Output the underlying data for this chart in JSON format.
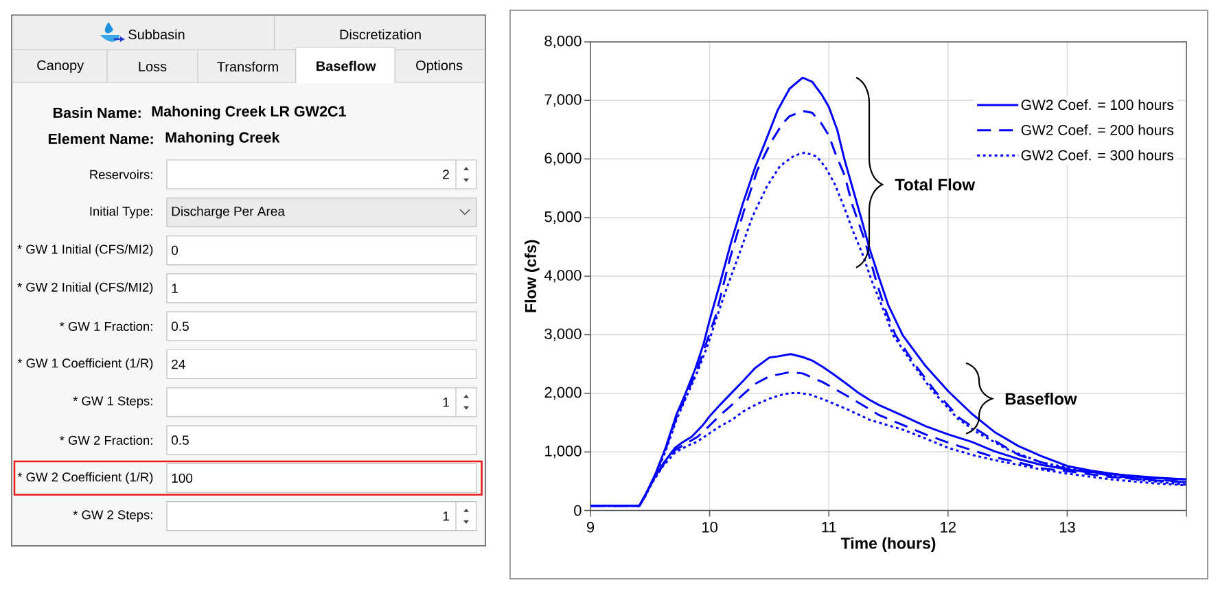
{
  "chart_data": [
    {
      "type": "other",
      "annotations": [
        "Subbasin",
        "Discretization",
        "Canopy",
        "Loss",
        "Transform",
        "Baseflow",
        "Options",
        "Basin Name:",
        "Mahoning Creek LR GW2C1",
        "Element Name:",
        "Mahoning Creek",
        "Reservoirs:",
        "2",
        "Initial Type:",
        "Discharge Per Area",
        "* GW 1 Initial (CFS/MI2)",
        "0",
        "* GW 2 Initial (CFS/MI2)",
        "1",
        "* GW 1 Fraction:",
        "0.5",
        "* GW 1 Coefficient (1/R)",
        "24",
        "* GW 1 Steps:",
        "1",
        "* GW 2 Fraction:",
        "0.5",
        "* GW 2 Coefficient (1/R)",
        "100",
        "* GW 2 Steps:",
        "1"
      ]
    },
    {
      "type": "line",
      "xlabel": "Time (hours)",
      "ylabel": "Flow (cfs)",
      "xlim": [
        9,
        14
      ],
      "xticks": [
        9,
        10,
        11,
        12,
        13,
        {
          "value": 14,
          "label": null
        }
      ],
      "ylim": [
        0,
        8000
      ],
      "yticks": [
        0,
        {
          "value": 1000,
          "label": "1,000"
        },
        {
          "value": 2000,
          "label": "2,000"
        },
        {
          "value": 3000,
          "label": "3,000"
        },
        {
          "value": 4000,
          "label": "4,000"
        },
        {
          "value": 5000,
          "label": "5,000"
        },
        {
          "value": 6000,
          "label": "6,000"
        },
        {
          "value": 7000,
          "label": "7,000"
        },
        {
          "value": 8000,
          "label": "8,000"
        }
      ],
      "grid": true,
      "legend": "top right",
      "series": [
        {
          "name": "GW2 Coef. = 100 hours",
          "color": "#0000ff",
          "line_style": "solid",
          "x": [
            9.0,
            9.41,
            9.46,
            9.55,
            9.63,
            9.72,
            9.79,
            9.88,
            9.95,
            10.0,
            10.09,
            10.18,
            10.28,
            10.38,
            10.48,
            10.57,
            10.67,
            10.78,
            10.86,
            10.94,
            11.0,
            11.07,
            11.13,
            11.2,
            11.27,
            11.34,
            11.42,
            11.5,
            11.62,
            11.81,
            12.0,
            12.2,
            12.39,
            12.59,
            12.78,
            13.0,
            13.2,
            13.37,
            13.55,
            13.75,
            14.0
          ],
          "values": [
            80,
            80,
            250,
            650,
            1070,
            1630,
            1960,
            2420,
            2850,
            3250,
            3900,
            4580,
            5250,
            5850,
            6360,
            6830,
            7200,
            7390,
            7320,
            7100,
            6890,
            6500,
            6000,
            5500,
            5000,
            4480,
            3980,
            3500,
            2990,
            2470,
            2040,
            1650,
            1340,
            1100,
            930,
            760,
            680,
            630,
            580,
            550,
            530
          ]
        },
        {
          "name": "GW2 Coef. = 200 hours",
          "color": "#0000ff",
          "line_style": "dashed",
          "x": [
            9.0,
            9.41,
            9.46,
            9.55,
            9.63,
            9.72,
            9.8,
            9.9,
            9.97,
            10.05,
            10.17,
            10.285,
            10.4,
            10.515,
            10.61,
            10.67,
            10.78,
            10.86,
            10.94,
            11.0,
            11.05,
            11.13,
            11.2,
            11.3,
            11.4,
            11.47,
            11.56,
            11.73,
            11.89,
            12.1,
            12.32,
            12.59,
            12.88,
            13.17,
            13.56,
            14.0
          ],
          "values": [
            80,
            80,
            250,
            640,
            1040,
            1580,
            1950,
            2430,
            2850,
            3320,
            4300,
            5100,
            5810,
            6290,
            6600,
            6730,
            6820,
            6790,
            6600,
            6400,
            6120,
            5730,
            5200,
            4620,
            3900,
            3450,
            2990,
            2470,
            2040,
            1570,
            1280,
            950,
            760,
            650,
            550,
            490
          ]
        },
        {
          "name": "GW2 Coef. = 300 hours",
          "color": "#0000ff",
          "line_style": "dotted",
          "x": [
            9.0,
            9.41,
            9.46,
            9.55,
            9.63,
            9.72,
            9.8,
            9.9,
            9.98,
            10.06,
            10.13,
            10.25,
            10.36,
            10.48,
            10.59,
            10.71,
            10.8,
            10.9,
            10.975,
            11.05,
            11.13,
            11.2,
            11.28,
            11.36,
            11.44,
            11.54,
            11.715,
            11.87,
            12.08,
            12.24,
            12.49,
            12.78,
            13.17,
            13.56,
            14.0
          ],
          "values": [
            80,
            80,
            240,
            620,
            1010,
            1540,
            1920,
            2380,
            2800,
            3300,
            3720,
            4390,
            5020,
            5530,
            5880,
            6060,
            6110,
            6040,
            5850,
            5570,
            5170,
            4780,
            4390,
            3920,
            3520,
            2990,
            2470,
            2040,
            1570,
            1340,
            1050,
            820,
            670,
            530,
            440
          ]
        },
        {
          "color": "#0000ff",
          "line_style": "solid",
          "x": [
            9.0,
            9.41,
            9.52,
            9.61,
            9.71,
            9.77,
            9.85,
            9.94,
            10.0,
            10.09,
            10.19,
            10.28,
            10.38,
            10.5,
            10.57,
            10.68,
            10.78,
            10.86,
            10.95,
            11.05,
            11.15,
            11.24,
            11.34,
            11.42,
            11.53,
            11.62,
            11.81,
            12.0,
            12.2,
            12.39,
            12.59,
            12.78,
            13.0,
            13.37,
            13.75,
            14.0
          ],
          "values": [
            80,
            80,
            500,
            800,
            1070,
            1160,
            1260,
            1450,
            1610,
            1810,
            2020,
            2210,
            2430,
            2610,
            2630,
            2670,
            2620,
            2560,
            2450,
            2310,
            2160,
            2020,
            1890,
            1800,
            1700,
            1620,
            1440,
            1300,
            1170,
            1010,
            880,
            780,
            700,
            620,
            560,
            530
          ]
        },
        {
          "color": "#0000ff",
          "line_style": "dashed",
          "x": [
            9.0,
            9.41,
            9.52,
            9.61,
            9.71,
            9.8,
            9.9,
            10.0,
            10.09,
            10.19,
            10.28,
            10.38,
            10.5,
            10.67,
            10.78,
            10.95,
            11.15,
            11.34,
            11.42,
            11.62,
            11.81,
            12.0,
            12.2,
            12.39,
            12.59,
            12.78,
            13.0,
            13.37,
            13.75,
            14.0
          ],
          "values": [
            80,
            80,
            490,
            780,
            1030,
            1140,
            1260,
            1450,
            1630,
            1810,
            1980,
            2160,
            2290,
            2360,
            2340,
            2190,
            1960,
            1730,
            1630,
            1460,
            1300,
            1160,
            1030,
            910,
            820,
            720,
            670,
            570,
            510,
            480
          ]
        },
        {
          "color": "#0000ff",
          "line_style": "dotted",
          "x": [
            9.0,
            9.41,
            9.52,
            9.61,
            9.71,
            9.8,
            9.9,
            10.0,
            10.09,
            10.19,
            10.28,
            10.4,
            10.515,
            10.63,
            10.73,
            10.84,
            10.95,
            11.15,
            11.34,
            11.42,
            11.62,
            11.81,
            12.0,
            12.2,
            12.39,
            12.59,
            12.78,
            13.0,
            13.37,
            13.75,
            14.0
          ],
          "values": [
            80,
            80,
            480,
            760,
            990,
            1090,
            1180,
            1320,
            1440,
            1550,
            1690,
            1820,
            1920,
            1990,
            2010,
            1980,
            1900,
            1730,
            1550,
            1500,
            1380,
            1230,
            1070,
            950,
            860,
            780,
            700,
            630,
            530,
            460,
            430
          ]
        }
      ],
      "annotations": [
        "Total Flow",
        "Baseflow"
      ]
    }
  ]
}
